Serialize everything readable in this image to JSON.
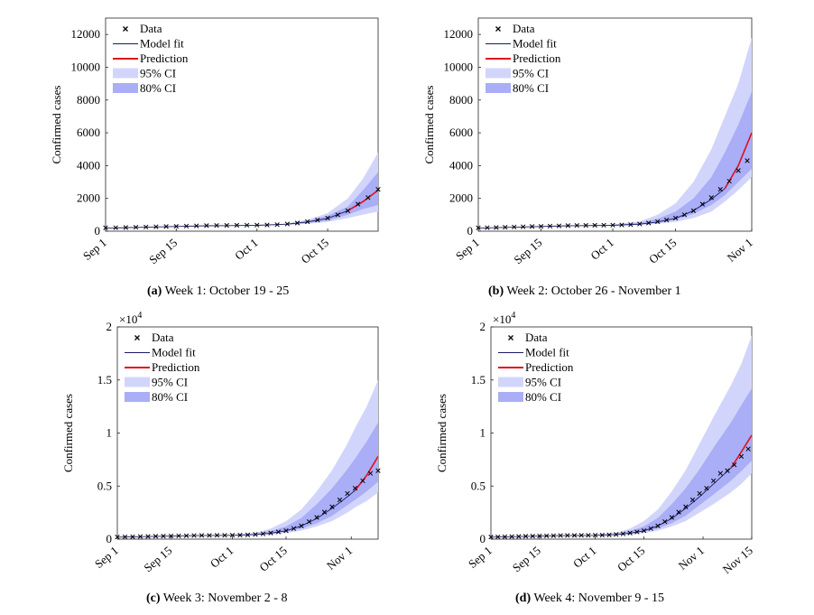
{
  "panels": [
    {
      "caption_label": "(a)",
      "caption_text": "Week 1: October 19 - 25",
      "chart_data": {
        "type": "line",
        "ylabel": "Confirmed cases",
        "ylim": [
          0,
          13000
        ],
        "yticks": [
          0,
          2000,
          4000,
          6000,
          8000,
          10000,
          12000
        ],
        "ytick_labels": [
          "0",
          "2000",
          "4000",
          "6000",
          "8000",
          "10000",
          "12000"
        ],
        "y_exponent": "",
        "xlim": [
          0,
          54
        ],
        "xticks": [
          0,
          14,
          30,
          44
        ],
        "xtick_labels": [
          "Sep 1",
          "Sep 15",
          "Oct 1",
          "Oct 15"
        ],
        "legend": [
          "Data",
          "Model fit",
          "Prediction",
          "95% CI",
          "80% CI"
        ],
        "legend_position": "top-left",
        "series": [
          {
            "name": "Data",
            "x": [
              0,
              2,
              4,
              6,
              8,
              10,
              12,
              14,
              16,
              18,
              20,
              22,
              24,
              26,
              28,
              30,
              32,
              34,
              36,
              38,
              40,
              42,
              44,
              46,
              48,
              50,
              52,
              54
            ],
            "values": [
              205,
              215,
              225,
              240,
              255,
              270,
              285,
              295,
              310,
              325,
              340,
              350,
              355,
              360,
              365,
              370,
              380,
              400,
              440,
              500,
              580,
              680,
              800,
              1000,
              1250,
              1650,
              2050,
              2550
            ]
          },
          {
            "name": "Model fit",
            "x": [
              0,
              10,
              20,
              30,
              36,
              40,
              44,
              48
            ],
            "values": [
              190,
              260,
              330,
              360,
              430,
              560,
              780,
              1250
            ]
          },
          {
            "name": "Prediction",
            "x": [
              48,
              51,
              54
            ],
            "values": [
              1250,
              1800,
              2500
            ]
          },
          {
            "name": "95% CI",
            "x": [
              36,
              40,
              44,
              48,
              51,
              54
            ],
            "lower": [
              380,
              450,
              560,
              800,
              1000,
              1200
            ],
            "upper": [
              480,
              700,
              1100,
              2000,
              3200,
              4800
            ]
          },
          {
            "name": "80% CI",
            "x": [
              36,
              40,
              44,
              48,
              51,
              54
            ],
            "lower": [
              400,
              500,
              650,
              1000,
              1350,
              1600
            ],
            "upper": [
              460,
              620,
              950,
              1500,
              2500,
              3600
            ]
          }
        ]
      }
    },
    {
      "caption_label": "(b)",
      "caption_text": "Week 2: October 26 - November 1",
      "chart_data": {
        "type": "line",
        "ylabel": "Confirmed cases",
        "ylim": [
          0,
          13000
        ],
        "yticks": [
          0,
          2000,
          4000,
          6000,
          8000,
          10000,
          12000
        ],
        "ytick_labels": [
          "0",
          "2000",
          "4000",
          "6000",
          "8000",
          "10000",
          "12000"
        ],
        "y_exponent": "",
        "xlim": [
          0,
          61
        ],
        "xticks": [
          0,
          14,
          30,
          44,
          61
        ],
        "xtick_labels": [
          "Sep 1",
          "Sep 15",
          "Oct 1",
          "Oct 15",
          "Nov 1"
        ],
        "legend": [
          "Data",
          "Model fit",
          "Prediction",
          "95% CI",
          "80% CI"
        ],
        "legend_position": "top-left",
        "series": [
          {
            "name": "Data",
            "x": [
              0,
              2,
              4,
              6,
              8,
              10,
              12,
              14,
              16,
              18,
              20,
              22,
              24,
              26,
              28,
              30,
              32,
              34,
              36,
              38,
              40,
              42,
              44,
              46,
              48,
              50,
              52,
              54,
              56,
              58,
              60
            ],
            "values": [
              205,
              215,
              225,
              240,
              255,
              270,
              285,
              295,
              310,
              325,
              340,
              350,
              355,
              360,
              365,
              370,
              380,
              400,
              440,
              500,
              580,
              680,
              800,
              1000,
              1250,
              1650,
              2050,
              2550,
              3050,
              3700,
              4300
            ]
          },
          {
            "name": "Model fit",
            "x": [
              0,
              10,
              20,
              30,
              36,
              40,
              44,
              48,
              52,
              55
            ],
            "values": [
              190,
              260,
              330,
              360,
              430,
              560,
              780,
              1250,
              1950,
              2600
            ]
          },
          {
            "name": "Prediction",
            "x": [
              55,
              58,
              61
            ],
            "values": [
              2600,
              4000,
              6000
            ]
          },
          {
            "name": "95% CI",
            "x": [
              30,
              36,
              40,
              44,
              48,
              52,
              55,
              58,
              61
            ],
            "lower": [
              340,
              380,
              450,
              560,
              800,
              1200,
              1800,
              2500,
              3300
            ],
            "upper": [
              400,
              600,
              1000,
              1700,
              3000,
              5000,
              7000,
              9000,
              11800
            ]
          },
          {
            "name": "80% CI",
            "x": [
              30,
              36,
              40,
              44,
              48,
              52,
              55,
              58,
              61
            ],
            "lower": [
              350,
              400,
              500,
              700,
              1050,
              1600,
              2200,
              3000,
              3800
            ],
            "upper": [
              380,
              500,
              760,
              1200,
              2000,
              3300,
              4800,
              6500,
              8500
            ]
          }
        ]
      }
    },
    {
      "caption_label": "(c)",
      "caption_text": "Week 3: November 2 - 8",
      "chart_data": {
        "type": "line",
        "ylabel": "Confirmed cases",
        "ylim": [
          0,
          2
        ],
        "yticks": [
          0,
          0.5,
          1,
          1.5,
          2
        ],
        "ytick_labels": [
          "0",
          "0.5",
          "1",
          "1.5",
          "2"
        ],
        "y_exponent": "4",
        "xlim": [
          0,
          68
        ],
        "xticks": [
          0,
          14,
          30,
          44,
          61
        ],
        "xtick_labels": [
          "Sep 1",
          "Sep 15",
          "Oct 1",
          "Oct 15",
          "Nov 1"
        ],
        "legend": [
          "Data",
          "Model fit",
          "Prediction",
          "95% CI",
          "80% CI"
        ],
        "legend_position": "top-left",
        "series": [
          {
            "name": "Data",
            "x": [
              0,
              2,
              4,
              6,
              8,
              10,
              12,
              14,
              16,
              18,
              20,
              22,
              24,
              26,
              28,
              30,
              32,
              34,
              36,
              38,
              40,
              42,
              44,
              46,
              48,
              50,
              52,
              54,
              56,
              58,
              60,
              62,
              64,
              66,
              68
            ],
            "values": [
              0.02,
              0.021,
              0.022,
              0.024,
              0.025,
              0.027,
              0.028,
              0.03,
              0.031,
              0.032,
              0.034,
              0.035,
              0.035,
              0.036,
              0.036,
              0.037,
              0.038,
              0.04,
              0.044,
              0.05,
              0.058,
              0.068,
              0.08,
              0.1,
              0.125,
              0.165,
              0.205,
              0.255,
              0.305,
              0.37,
              0.43,
              0.48,
              0.55,
              0.62,
              0.645
            ]
          },
          {
            "name": "Model fit",
            "x": [
              0,
              10,
              20,
              30,
              36,
              40,
              44,
              48,
              52,
              56,
              60,
              62
            ],
            "values": [
              0.019,
              0.026,
              0.033,
              0.036,
              0.043,
              0.056,
              0.078,
              0.125,
              0.195,
              0.29,
              0.4,
              0.46
            ]
          },
          {
            "name": "Prediction",
            "x": [
              62,
              65,
              68
            ],
            "values": [
              0.46,
              0.6,
              0.78
            ]
          },
          {
            "name": "95% CI",
            "x": [
              30,
              36,
              40,
              44,
              48,
              52,
              56,
              60,
              62,
              65,
              68
            ],
            "lower": [
              0.034,
              0.038,
              0.045,
              0.056,
              0.08,
              0.12,
              0.17,
              0.25,
              0.3,
              0.36,
              0.44
            ],
            "upper": [
              0.04,
              0.06,
              0.1,
              0.17,
              0.28,
              0.45,
              0.65,
              0.9,
              1.05,
              1.25,
              1.5
            ]
          },
          {
            "name": "80% CI",
            "x": [
              30,
              36,
              40,
              44,
              48,
              52,
              56,
              60,
              62,
              65,
              68
            ],
            "lower": [
              0.035,
              0.04,
              0.05,
              0.07,
              0.1,
              0.15,
              0.22,
              0.32,
              0.37,
              0.45,
              0.54
            ],
            "upper": [
              0.038,
              0.05,
              0.076,
              0.12,
              0.2,
              0.33,
              0.48,
              0.66,
              0.76,
              0.92,
              1.1
            ]
          }
        ]
      }
    },
    {
      "caption_label": "(d)",
      "caption_text": "Week 4: November 9 - 15",
      "chart_data": {
        "type": "line",
        "ylabel": "Confirmed cases",
        "ylim": [
          0,
          2
        ],
        "yticks": [
          0,
          0.5,
          1,
          1.5,
          2
        ],
        "ytick_labels": [
          "0",
          "0.5",
          "1",
          "1.5",
          "2"
        ],
        "y_exponent": "4",
        "xlim": [
          0,
          75
        ],
        "xticks": [
          0,
          14,
          30,
          44,
          61,
          75
        ],
        "xtick_labels": [
          "Sep 1",
          "Sep 15",
          "Oct 1",
          "Oct 15",
          "Nov 1",
          "Nov 15"
        ],
        "legend": [
          "Data",
          "Model fit",
          "Prediction",
          "95% CI",
          "80% CI"
        ],
        "legend_position": "top-left",
        "series": [
          {
            "name": "Data",
            "x": [
              0,
              2,
              4,
              6,
              8,
              10,
              12,
              14,
              16,
              18,
              20,
              22,
              24,
              26,
              28,
              30,
              32,
              34,
              36,
              38,
              40,
              42,
              44,
              46,
              48,
              50,
              52,
              54,
              56,
              58,
              60,
              62,
              64,
              66,
              68,
              70,
              72,
              74
            ],
            "values": [
              0.02,
              0.021,
              0.022,
              0.024,
              0.025,
              0.027,
              0.028,
              0.03,
              0.031,
              0.032,
              0.034,
              0.035,
              0.035,
              0.036,
              0.036,
              0.037,
              0.038,
              0.04,
              0.044,
              0.05,
              0.058,
              0.068,
              0.08,
              0.1,
              0.125,
              0.165,
              0.205,
              0.255,
              0.305,
              0.37,
              0.43,
              0.48,
              0.55,
              0.62,
              0.645,
              0.7,
              0.78,
              0.85
            ]
          },
          {
            "name": "Model fit",
            "x": [
              0,
              10,
              20,
              30,
              36,
              40,
              44,
              48,
              52,
              56,
              60,
              64,
              68,
              69
            ],
            "values": [
              0.019,
              0.026,
              0.033,
              0.036,
              0.043,
              0.056,
              0.078,
              0.125,
              0.195,
              0.29,
              0.4,
              0.52,
              0.64,
              0.67
            ]
          },
          {
            "name": "Prediction",
            "x": [
              69,
              72,
              75
            ],
            "values": [
              0.67,
              0.82,
              0.98
            ]
          },
          {
            "name": "95% CI",
            "x": [
              30,
              36,
              40,
              44,
              48,
              52,
              56,
              60,
              64,
              69,
              72,
              75
            ],
            "lower": [
              0.034,
              0.038,
              0.045,
              0.056,
              0.08,
              0.12,
              0.17,
              0.25,
              0.33,
              0.44,
              0.52,
              0.62
            ],
            "upper": [
              0.04,
              0.06,
              0.1,
              0.17,
              0.28,
              0.45,
              0.65,
              0.9,
              1.15,
              1.45,
              1.65,
              1.92
            ]
          },
          {
            "name": "80% CI",
            "x": [
              30,
              36,
              40,
              44,
              48,
              52,
              56,
              60,
              64,
              69,
              72,
              75
            ],
            "lower": [
              0.035,
              0.04,
              0.05,
              0.07,
              0.1,
              0.15,
              0.22,
              0.32,
              0.42,
              0.55,
              0.64,
              0.74
            ],
            "upper": [
              0.038,
              0.05,
              0.076,
              0.12,
              0.2,
              0.33,
              0.48,
              0.66,
              0.86,
              1.1,
              1.26,
              1.42
            ]
          }
        ]
      }
    }
  ],
  "colors": {
    "ci95": "#d2d5fb",
    "ci80": "#a9aef6",
    "data": "#000000",
    "model_fit": "#1a1a66",
    "prediction": "#e0101e",
    "axis": "#262626"
  }
}
